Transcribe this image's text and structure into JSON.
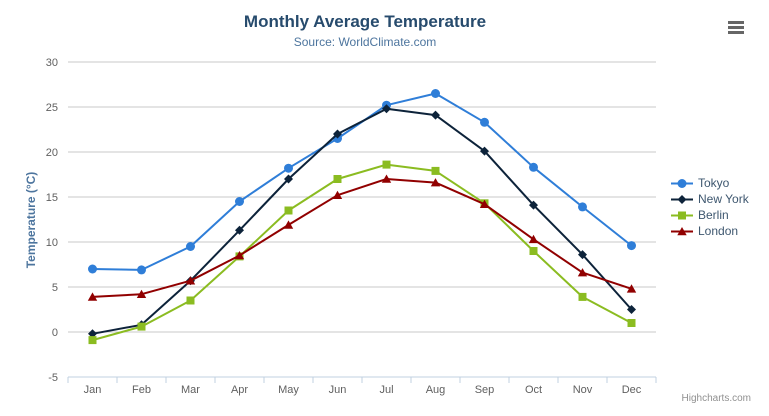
{
  "chart_data": {
    "type": "line",
    "title": "Monthly Average Temperature",
    "subtitle": "Source: WorldClimate.com",
    "xlabel": "",
    "ylabel": "Temperature (°C)",
    "categories": [
      "Jan",
      "Feb",
      "Mar",
      "Apr",
      "May",
      "Jun",
      "Jul",
      "Aug",
      "Sep",
      "Oct",
      "Nov",
      "Dec"
    ],
    "ylim": [
      -5,
      30
    ],
    "ytick_step": 5,
    "grid": true,
    "legend_position": "right",
    "series": [
      {
        "name": "Tokyo",
        "color": "#2f7ed8",
        "marker": "circle",
        "values": [
          7.0,
          6.9,
          9.5,
          14.5,
          18.2,
          21.5,
          25.2,
          26.5,
          23.3,
          18.3,
          13.9,
          9.6
        ]
      },
      {
        "name": "New York",
        "color": "#0d233a",
        "marker": "diamond",
        "values": [
          -0.2,
          0.8,
          5.7,
          11.3,
          17.0,
          22.0,
          24.8,
          24.1,
          20.1,
          14.1,
          8.6,
          2.5
        ]
      },
      {
        "name": "Berlin",
        "color": "#8bbc21",
        "marker": "square",
        "values": [
          -0.9,
          0.6,
          3.5,
          8.4,
          13.5,
          17.0,
          18.6,
          17.9,
          14.3,
          9.0,
          3.9,
          1.0
        ]
      },
      {
        "name": "London",
        "color": "#910000",
        "marker": "triangle",
        "values": [
          3.9,
          4.2,
          5.7,
          8.5,
          11.9,
          15.2,
          17.0,
          16.6,
          14.2,
          10.3,
          6.6,
          4.8
        ]
      }
    ]
  },
  "credit": "Highcharts.com",
  "colors": {
    "title": "#274b6d",
    "subtitle": "#4d759e",
    "axis_label": "#606060",
    "axis_title": "#4d759e",
    "axis_line": "#c0d0e0",
    "gridline": "#c8c8c8",
    "legend_text": "#3e576f",
    "credit": "#909090",
    "menu_icon": "#666666"
  }
}
